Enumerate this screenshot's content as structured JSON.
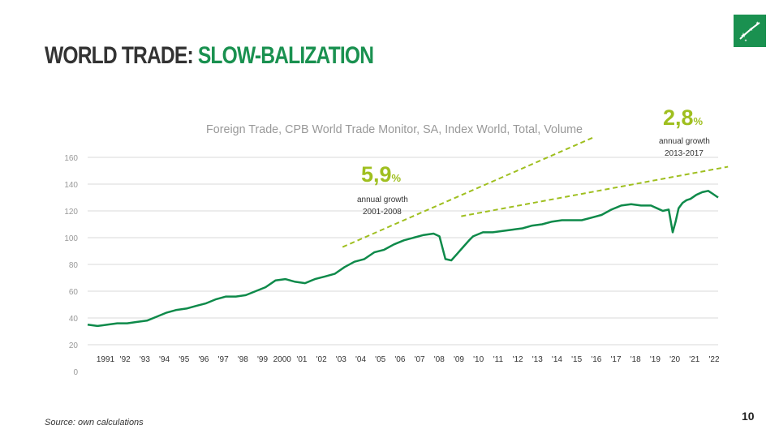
{
  "slide": {
    "title_part1": "WORLD TRADE: ",
    "title_part2": "SLOW-BALIZATION",
    "page_number": "10",
    "source": "Source: own calculations"
  },
  "colors": {
    "brand_green": "#1a9150",
    "line_green": "#0e8a4a",
    "trend_green": "#9fbf1f",
    "title_dark": "#333333"
  },
  "logo": {
    "icon": "bnp-stars-logo-icon"
  },
  "chart_data": {
    "type": "line",
    "title": "Foreign Trade, CPB World Trade Monitor, SA, Index World, Total, Volume",
    "xlabel": "",
    "ylabel": "",
    "ylim": [
      0,
      160
    ],
    "yticks": [
      "0",
      "20",
      "40",
      "60",
      "80",
      "100",
      "120",
      "140",
      "160"
    ],
    "grid": true,
    "x_tick_labels": [
      "1991",
      "'92",
      "'93",
      "'94",
      "'95",
      "'96",
      "'97",
      "'98",
      "'99",
      "2000",
      "'01",
      "'02",
      "'03",
      "'04",
      "'05",
      "'06",
      "'07",
      "'08",
      "'09",
      "'10",
      "'11",
      "'12",
      "'13",
      "'14",
      "'15",
      "'16",
      "'17",
      "'18",
      "'19",
      "'20",
      "'21",
      "'22"
    ],
    "xlim": [
      1990.5,
      2022.4
    ],
    "series": [
      {
        "x": [
          1990.5,
          1991.0,
          1991.5,
          1992.0,
          1992.5,
          1993.0,
          1993.5,
          1994.0,
          1994.5,
          1995.0,
          1995.5,
          1996.0,
          1996.5,
          1997.0,
          1997.5,
          1998.0,
          1998.5,
          1999.0,
          1999.5,
          2000.0,
          2000.5,
          2001.0,
          2001.5,
          2002.0,
          2002.5,
          2003.0,
          2003.5,
          2004.0,
          2004.5,
          2005.0,
          2005.5,
          2006.0,
          2006.5,
          2007.0,
          2007.5,
          2008.0,
          2008.3,
          2008.6,
          2008.9,
          2009.2,
          2009.5,
          2009.8,
          2010.0,
          2010.5,
          2011.0,
          2011.5,
          2012.0,
          2012.5,
          2013.0,
          2013.5,
          2014.0,
          2014.5,
          2015.0,
          2015.5,
          2016.0,
          2016.5,
          2017.0,
          2017.5,
          2018.0,
          2018.5,
          2019.0,
          2019.3,
          2019.6,
          2019.9,
          2020.1,
          2020.25,
          2020.4,
          2020.6,
          2020.8,
          2021.0,
          2021.3,
          2021.6,
          2021.9,
          2022.1,
          2022.4
        ],
        "values": [
          35,
          34,
          35,
          36,
          36,
          37,
          38,
          41,
          44,
          46,
          47,
          49,
          51,
          54,
          56,
          56,
          57,
          60,
          63,
          68,
          69,
          67,
          66,
          69,
          71,
          73,
          78,
          82,
          84,
          89,
          91,
          95,
          98,
          100,
          102,
          103,
          101,
          84,
          83,
          88,
          93,
          98,
          101,
          104,
          104,
          105,
          106,
          107,
          109,
          110,
          112,
          113,
          113,
          113,
          115,
          117,
          121,
          124,
          125,
          124,
          124,
          122,
          120,
          121,
          104,
          112,
          122,
          126,
          128,
          129,
          132,
          134,
          135,
          133,
          130
        ]
      }
    ],
    "trend_lines": [
      {
        "label": "5,9",
        "unit": "%",
        "description_line1": "annual growth",
        "description_line2": "2001-2008",
        "from": [
          2003.4,
          93
        ],
        "to": [
          2016.1,
          175
        ]
      },
      {
        "label": "2,8",
        "unit": "%",
        "description_line1": "annual growth",
        "description_line2": "2013-2017",
        "from": [
          2009.4,
          116
        ],
        "to": [
          2022.9,
          153
        ]
      }
    ]
  }
}
